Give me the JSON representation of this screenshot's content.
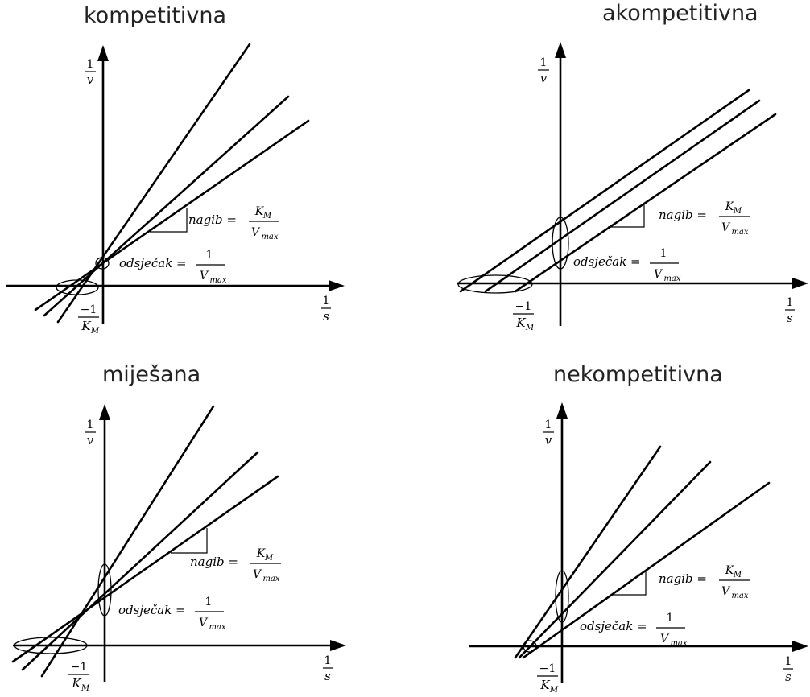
{
  "panels": [
    {
      "id": "competitive",
      "title": "kompetitivna"
    },
    {
      "id": "uncompetitive",
      "title": "akompetitivna"
    },
    {
      "id": "mixed",
      "title": "miješana"
    },
    {
      "id": "noncompetitive",
      "title": "nekompetitivna"
    }
  ],
  "labels": {
    "one": "1",
    "minus_one": "−1",
    "v": "v",
    "s": "s",
    "K": "K",
    "M": "M",
    "V": "V",
    "max": "max",
    "slope": "nagib =",
    "intercept": "odsječak ="
  }
}
